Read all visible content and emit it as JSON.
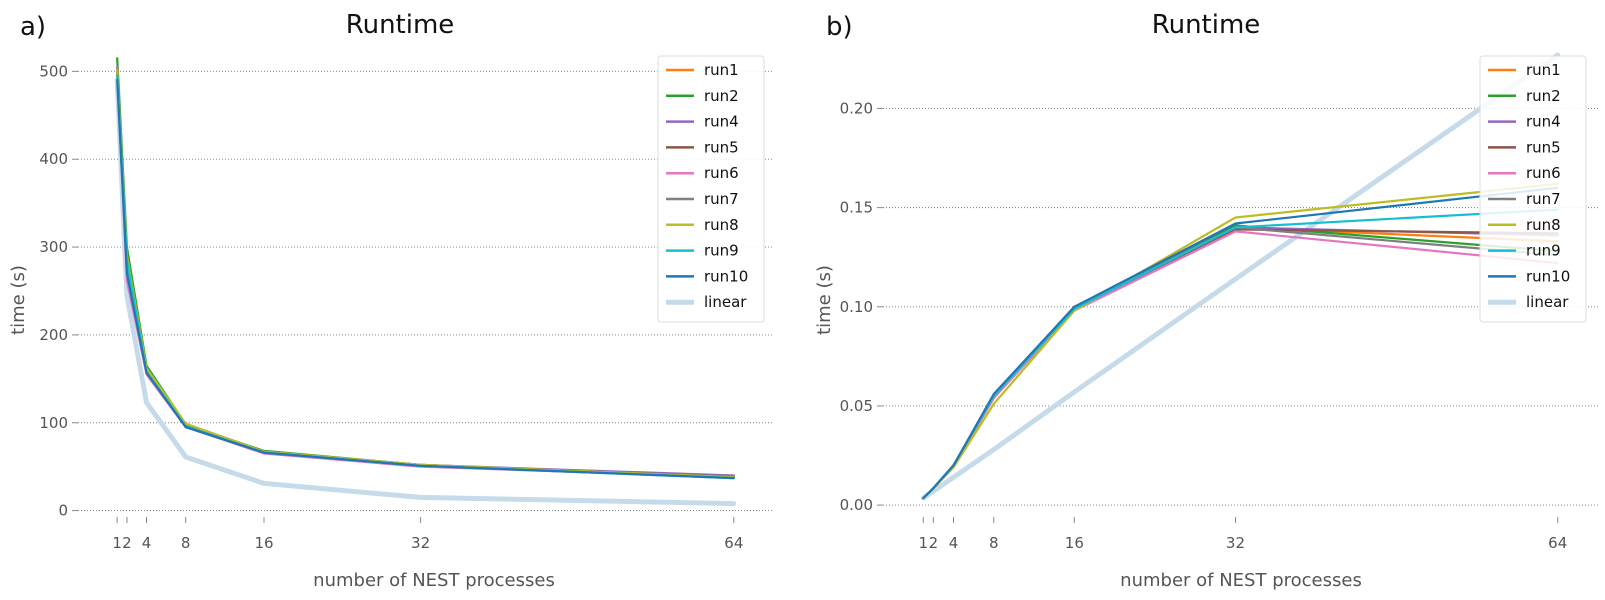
{
  "colors": {
    "run1": "#ff7f0e",
    "run2": "#2ca02c",
    "run4": "#9467bd",
    "run5": "#8c564b",
    "run6": "#e377c2",
    "run7": "#7f7f7f",
    "run8": "#bcbd22",
    "run9": "#17becf",
    "run10": "#1f77b4",
    "linear": "#c6dbea"
  },
  "chart_data": [
    {
      "panel": "a)",
      "type": "line",
      "title": "Runtime",
      "xlabel": "number of NEST processes",
      "ylabel": "time (s)",
      "x": [
        1,
        2,
        4,
        8,
        16,
        32,
        64
      ],
      "xticks": [
        1,
        2,
        4,
        8,
        16,
        32,
        64
      ],
      "xlim": [
        -3,
        68
      ],
      "ylim": [
        -5,
        530
      ],
      "yticks": [
        0,
        100,
        200,
        300,
        400,
        500
      ],
      "grid": "y",
      "legend": "top-right",
      "series": [
        {
          "name": "run1",
          "values": [
            503,
            285,
            162,
            97,
            66,
            52,
            38
          ]
        },
        {
          "name": "run2",
          "values": [
            515,
            300,
            165,
            98,
            68,
            52,
            38
          ]
        },
        {
          "name": "run4",
          "values": [
            505,
            280,
            160,
            96,
            67,
            52,
            40
          ]
        },
        {
          "name": "run5",
          "values": [
            500,
            275,
            158,
            95,
            66,
            51,
            39
          ]
        },
        {
          "name": "run6",
          "values": [
            498,
            262,
            155,
            95,
            65,
            50,
            38
          ]
        },
        {
          "name": "run7",
          "values": [
            500,
            278,
            160,
            96,
            66,
            51,
            39
          ]
        },
        {
          "name": "run8",
          "values": [
            502,
            290,
            162,
            99,
            67,
            52,
            38
          ]
        },
        {
          "name": "run9",
          "values": [
            495,
            285,
            158,
            96,
            66,
            51,
            37
          ]
        },
        {
          "name": "run10",
          "values": [
            490,
            270,
            157,
            95,
            66,
            51,
            37
          ]
        },
        {
          "name": "linear",
          "values": [
            490,
            245,
            123,
            61,
            31,
            15,
            8
          ]
        }
      ]
    },
    {
      "panel": "b)",
      "type": "line",
      "title": "Runtime",
      "xlabel": "number of NEST processes",
      "ylabel": "time (s)",
      "x": [
        1,
        2,
        4,
        8,
        16,
        32,
        64
      ],
      "xticks": [
        1,
        2,
        4,
        8,
        16,
        32,
        64
      ],
      "xlim": [
        -3,
        68
      ],
      "ylim": [
        -0.005,
        0.232
      ],
      "yticks": [
        "0.00",
        "0.05",
        "0.10",
        "0.15",
        "0.20"
      ],
      "grid": "y",
      "legend": "top-right",
      "series": [
        {
          "name": "run1",
          "values": [
            0.0035,
            0.0085,
            0.02,
            0.055,
            0.1,
            0.14,
            0.133
          ]
        },
        {
          "name": "run2",
          "values": [
            0.0035,
            0.0085,
            0.02,
            0.055,
            0.099,
            0.141,
            0.128
          ]
        },
        {
          "name": "run4",
          "values": [
            0.0035,
            0.0085,
            0.02,
            0.055,
            0.1,
            0.14,
            0.136
          ]
        },
        {
          "name": "run5",
          "values": [
            0.0035,
            0.0085,
            0.02,
            0.054,
            0.099,
            0.139,
            0.137
          ]
        },
        {
          "name": "run6",
          "values": [
            0.0035,
            0.0085,
            0.02,
            0.054,
            0.098,
            0.138,
            0.122
          ]
        },
        {
          "name": "run7",
          "values": [
            0.0035,
            0.0085,
            0.02,
            0.055,
            0.1,
            0.14,
            0.126
          ]
        },
        {
          "name": "run8",
          "values": [
            0.0035,
            0.0085,
            0.019,
            0.051,
            0.098,
            0.145,
            0.162
          ]
        },
        {
          "name": "run9",
          "values": [
            0.0035,
            0.0085,
            0.02,
            0.055,
            0.099,
            0.14,
            0.149
          ]
        },
        {
          "name": "run10",
          "values": [
            0.0035,
            0.0085,
            0.02,
            0.056,
            0.1,
            0.142,
            0.16
          ]
        },
        {
          "name": "linear",
          "values": [
            0.0035,
            0.007,
            0.014,
            0.028,
            0.057,
            0.114,
            0.227
          ]
        }
      ]
    }
  ]
}
